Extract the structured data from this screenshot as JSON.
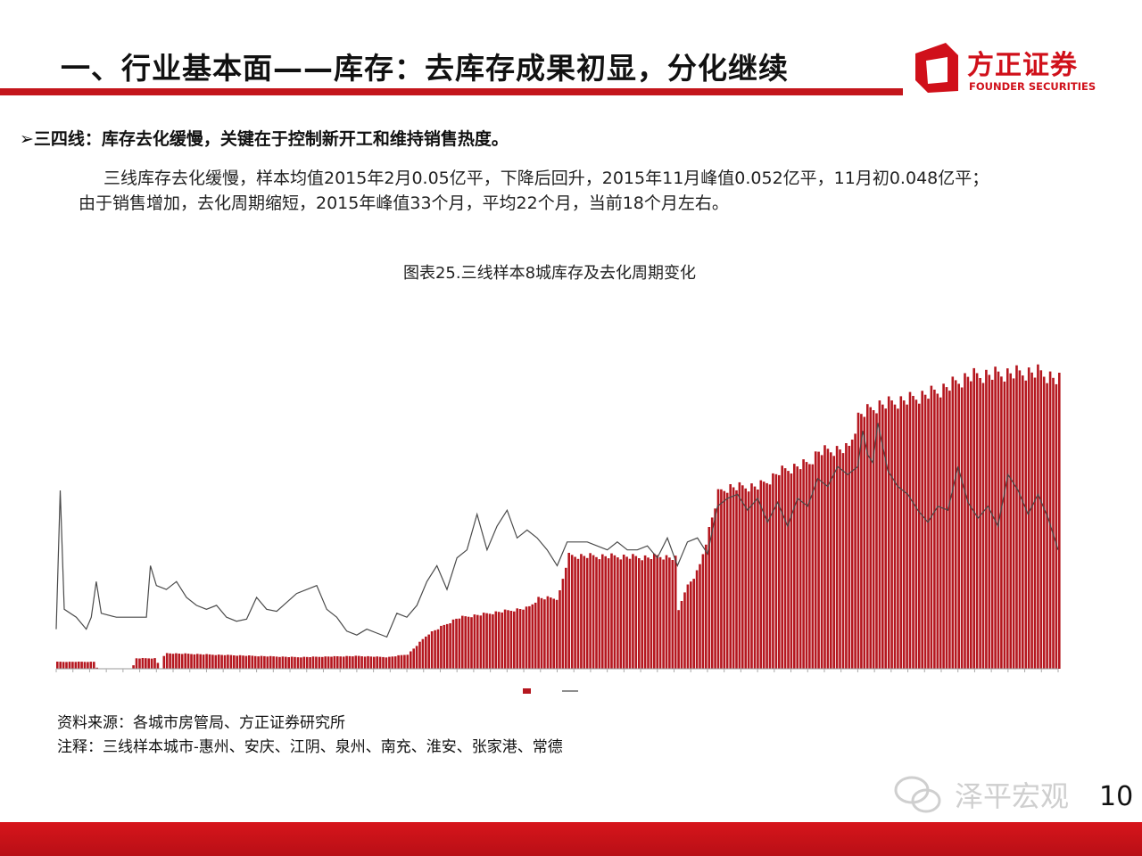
{
  "slide": {
    "title": "一、行业基本面——库存：去库存成果初显，分化继续",
    "bullet": "三四线：库存去化缓慢，关键在于控制新开工和维持销售热度。",
    "bullet_marker": "➢",
    "paragraph_line1": "三线库存去化缓慢，样本均值2015年2月0.05亿平，下降后回升，2015年11月峰值0.052亿平，11月初0.048亿平；",
    "paragraph_line2": "由于销售增加，去化周期缩短，2015年峰值33个月，平均22个月，当前18个月左右。",
    "figure_title": "图表25.三线样本8城库存及去化周期变化",
    "source": "资料来源：各城市房管局、方正证券研究所",
    "note": "注释：三线样本城市-惠州、安庆、江阴、泉州、南充、淮安、张家港、常德",
    "page_number": "10",
    "watermark": "泽平宏观",
    "accent_color": "#c4161c"
  },
  "logo": {
    "name": "方正证券",
    "subtitle": "FOUNDER SECURITIES",
    "color": "#d0101a"
  },
  "chart_data": {
    "type": "bar",
    "x_range": [
      0,
      1
    ],
    "left_axis": {
      "ylim": [
        0,
        6
      ]
    },
    "right_axis": {
      "ylim": [
        0,
        9
      ]
    },
    "series": [
      {
        "kind": "bar",
        "color": "#b5171f",
        "points": [
          [
            0.0,
            0.12
          ],
          [
            0.037,
            0.12
          ],
          [
            0.04,
            0
          ],
          [
            0.075,
            0
          ],
          [
            0.078,
            0.18
          ],
          [
            0.099,
            0.18
          ],
          [
            0.102,
            0
          ],
          [
            0.104,
            0
          ],
          [
            0.107,
            0.27
          ],
          [
            0.2,
            0.22
          ],
          [
            0.24,
            0.2
          ],
          [
            0.3,
            0.22
          ],
          [
            0.33,
            0.2
          ],
          [
            0.35,
            0.25
          ],
          [
            0.37,
            0.6
          ],
          [
            0.4,
            0.88
          ],
          [
            0.44,
            0.98
          ],
          [
            0.47,
            1.05
          ],
          [
            0.48,
            1.22
          ],
          [
            0.5,
            1.22
          ],
          [
            0.51,
            1.95
          ],
          [
            0.56,
            1.94
          ],
          [
            0.59,
            1.92
          ],
          [
            0.6,
            1.95
          ],
          [
            0.618,
            1.9
          ],
          [
            0.62,
            1.0
          ],
          [
            0.626,
            1.35
          ],
          [
            0.64,
            1.7
          ],
          [
            0.66,
            3.05
          ],
          [
            0.67,
            3.13
          ],
          [
            0.7,
            3.15
          ],
          [
            0.71,
            3.25
          ],
          [
            0.72,
            3.4
          ],
          [
            0.75,
            3.55
          ],
          [
            0.76,
            3.75
          ],
          [
            0.79,
            3.8
          ],
          [
            0.8,
            4.38
          ],
          [
            0.82,
            4.55
          ],
          [
            0.85,
            4.65
          ],
          [
            0.88,
            4.8
          ],
          [
            0.91,
            5.05
          ],
          [
            0.95,
            5.1
          ],
          [
            0.98,
            5.12
          ],
          [
            1.0,
            4.98
          ]
        ]
      },
      {
        "kind": "line",
        "color": "#4a4a4a",
        "points": [
          [
            0.0,
            1.0
          ],
          [
            0.004,
            4.5
          ],
          [
            0.008,
            1.5
          ],
          [
            0.02,
            1.3
          ],
          [
            0.03,
            1.0
          ],
          [
            0.035,
            1.3
          ],
          [
            0.04,
            2.2
          ],
          [
            0.045,
            1.4
          ],
          [
            0.06,
            1.3
          ],
          [
            0.08,
            1.3
          ],
          [
            0.09,
            1.3
          ],
          [
            0.094,
            2.6
          ],
          [
            0.1,
            2.1
          ],
          [
            0.11,
            2.0
          ],
          [
            0.12,
            2.2
          ],
          [
            0.13,
            1.8
          ],
          [
            0.14,
            1.6
          ],
          [
            0.15,
            1.5
          ],
          [
            0.16,
            1.6
          ],
          [
            0.17,
            1.3
          ],
          [
            0.18,
            1.2
          ],
          [
            0.19,
            1.25
          ],
          [
            0.2,
            1.8
          ],
          [
            0.21,
            1.5
          ],
          [
            0.22,
            1.45
          ],
          [
            0.24,
            1.9
          ],
          [
            0.26,
            2.1
          ],
          [
            0.27,
            1.5
          ],
          [
            0.28,
            1.3
          ],
          [
            0.29,
            0.95
          ],
          [
            0.3,
            0.85
          ],
          [
            0.31,
            1.0
          ],
          [
            0.32,
            0.9
          ],
          [
            0.33,
            0.8
          ],
          [
            0.34,
            1.4
          ],
          [
            0.35,
            1.3
          ],
          [
            0.36,
            1.6
          ],
          [
            0.37,
            2.2
          ],
          [
            0.38,
            2.6
          ],
          [
            0.39,
            2.0
          ],
          [
            0.4,
            2.8
          ],
          [
            0.41,
            3.0
          ],
          [
            0.42,
            3.9
          ],
          [
            0.43,
            3.0
          ],
          [
            0.44,
            3.6
          ],
          [
            0.45,
            4.0
          ],
          [
            0.46,
            3.3
          ],
          [
            0.47,
            3.5
          ],
          [
            0.48,
            3.3
          ],
          [
            0.49,
            3.0
          ],
          [
            0.5,
            2.6
          ],
          [
            0.51,
            3.2
          ],
          [
            0.53,
            3.2
          ],
          [
            0.55,
            3.0
          ],
          [
            0.56,
            3.2
          ],
          [
            0.57,
            3.0
          ],
          [
            0.58,
            3.0
          ],
          [
            0.59,
            3.1
          ],
          [
            0.6,
            2.8
          ],
          [
            0.61,
            3.3
          ],
          [
            0.62,
            2.6
          ],
          [
            0.63,
            3.2
          ],
          [
            0.64,
            3.3
          ],
          [
            0.65,
            2.9
          ],
          [
            0.66,
            4.1
          ],
          [
            0.67,
            4.3
          ],
          [
            0.68,
            4.4
          ],
          [
            0.69,
            4.0
          ],
          [
            0.7,
            4.3
          ],
          [
            0.71,
            3.7
          ],
          [
            0.72,
            4.2
          ],
          [
            0.73,
            3.6
          ],
          [
            0.74,
            4.3
          ],
          [
            0.75,
            4.1
          ],
          [
            0.76,
            4.8
          ],
          [
            0.77,
            4.6
          ],
          [
            0.78,
            5.1
          ],
          [
            0.79,
            4.9
          ],
          [
            0.8,
            5.1
          ],
          [
            0.805,
            6.0
          ],
          [
            0.81,
            5.4
          ],
          [
            0.815,
            5.2
          ],
          [
            0.82,
            6.2
          ],
          [
            0.83,
            5.0
          ],
          [
            0.84,
            4.6
          ],
          [
            0.85,
            4.4
          ],
          [
            0.86,
            4.0
          ],
          [
            0.87,
            3.7
          ],
          [
            0.88,
            4.1
          ],
          [
            0.89,
            4.0
          ],
          [
            0.9,
            5.1
          ],
          [
            0.91,
            4.2
          ],
          [
            0.92,
            3.8
          ],
          [
            0.93,
            4.1
          ],
          [
            0.94,
            3.6
          ],
          [
            0.95,
            4.9
          ],
          [
            0.96,
            4.5
          ],
          [
            0.97,
            3.9
          ],
          [
            0.98,
            4.4
          ],
          [
            0.99,
            3.8
          ],
          [
            1.0,
            3.0
          ]
        ]
      }
    ]
  }
}
